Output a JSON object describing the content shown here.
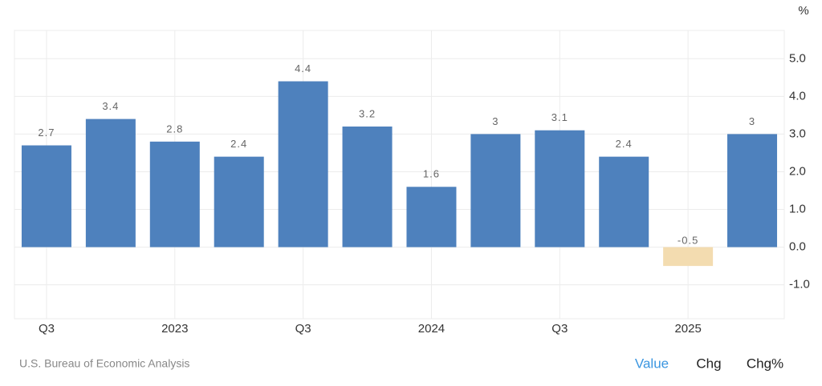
{
  "chart_data": {
    "type": "bar",
    "categories": [
      "Q3",
      null,
      "2023",
      null,
      "Q3",
      null,
      "2024",
      null,
      "Q3",
      null,
      "2025",
      null
    ],
    "values": [
      2.7,
      3.4,
      2.8,
      2.4,
      4.4,
      3.2,
      1.6,
      3,
      3.1,
      2.4,
      -0.5,
      3
    ],
    "color": "#4e81bd",
    "negative_color": "#f3dcb0",
    "ylim": [
      -1.9,
      5.75
    ],
    "yticks": [
      {
        "value": -1,
        "label": "-1.0"
      },
      {
        "value": 0,
        "label": "0.0"
      },
      {
        "value": 1,
        "label": "1.0"
      },
      {
        "value": 2,
        "label": "2.0"
      },
      {
        "value": 3,
        "label": "3.0"
      },
      {
        "value": 4,
        "label": "4.0"
      },
      {
        "value": 5,
        "label": "5.0"
      }
    ],
    "y_unit": "%",
    "grid": true,
    "y_axis_side": "right"
  },
  "source": "U.S. Bureau of Economic Analysis",
  "controls": [
    "Value",
    "Chg",
    "Chg%"
  ],
  "active_control": 0
}
